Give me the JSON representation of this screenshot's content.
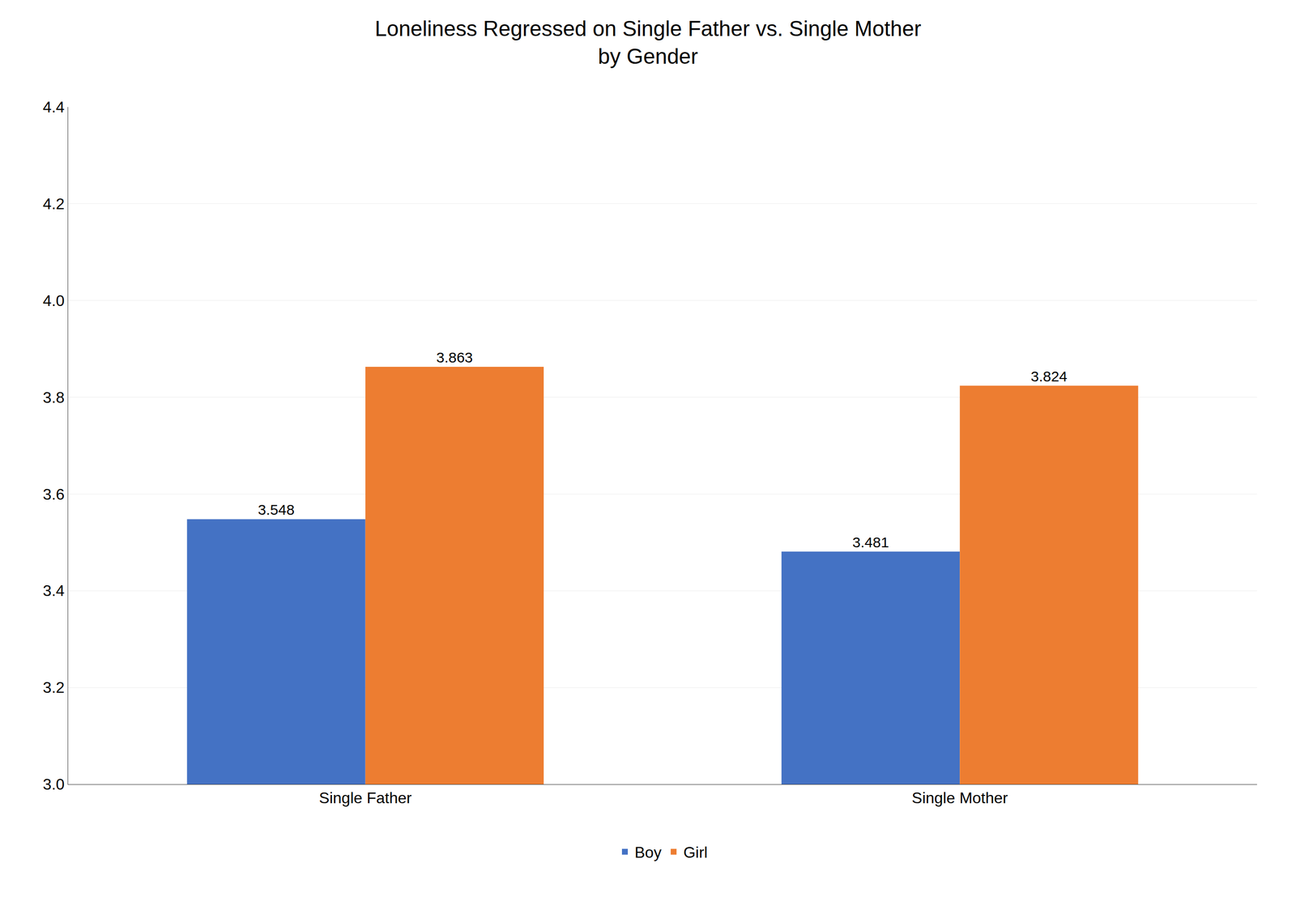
{
  "chart_data": {
    "type": "bar",
    "title": "Loneliness Regressed on Single Father vs. Single Mother\nby Gender",
    "categories": [
      "Single Father",
      "Single Mother"
    ],
    "series": [
      {
        "name": "Boy",
        "color": "#4472C4",
        "values": [
          3.548,
          3.481
        ]
      },
      {
        "name": "Girl",
        "color": "#ED7D31",
        "values": [
          3.863,
          3.824
        ]
      }
    ],
    "ylim": [
      3.0,
      4.4
    ],
    "yticks": [
      {
        "value": 3.0,
        "label": "3.0"
      },
      3.2,
      3.4,
      3.6,
      3.8,
      {
        "value": 4.0,
        "label": "4.0"
      },
      4.2,
      4.4
    ],
    "grid": true,
    "legend": "bottom",
    "data_labels": true
  }
}
